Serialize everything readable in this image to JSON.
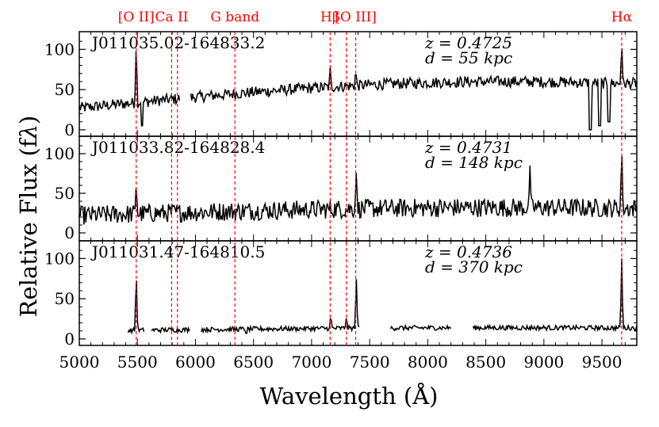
{
  "chart_data": {
    "type": "line",
    "xlabel": "Wavelength (Å)",
    "ylabel": "Relative Flux (f",
    "ylabel_sub": "λ",
    "ylabel_close": ")",
    "xlim": [
      5000,
      9800
    ],
    "x_ticks": [
      5000,
      5500,
      6000,
      6500,
      7000,
      7500,
      8000,
      8500,
      9000,
      9500
    ],
    "y_ticks": [
      0,
      50,
      100
    ],
    "line_color": "#000000",
    "marker_color": "#ff0000",
    "emission_lines": [
      {
        "label": "[O II]",
        "x": 5490
      },
      {
        "label": "Ca II",
        "x": 5795,
        "label2": null
      },
      {
        "label": null,
        "x": 5845
      },
      {
        "label": "G band",
        "x": 6340
      },
      {
        "label": "Hβ",
        "x": 7160
      },
      {
        "label": null,
        "x": 7300
      },
      {
        "label": "[O III]",
        "x": 7380
      },
      {
        "label": "Hα",
        "x": 9670
      }
    ],
    "panels": [
      {
        "name": "J011035.02-164833.2",
        "z_label": "z = 0.4725",
        "d_label": "d = 55 kpc",
        "ylim": [
          -8,
          122
        ],
        "baseline_start": 27,
        "baseline_peak": 60,
        "noise": 7,
        "gaps": [
          [
            5870,
            5960
          ]
        ],
        "peaks": [
          [
            5490,
            110
          ],
          [
            7160,
            78
          ],
          [
            7380,
            75
          ],
          [
            9670,
            110
          ]
        ],
        "dips": [
          [
            5540,
            5
          ],
          [
            9400,
            0
          ],
          [
            9480,
            5
          ],
          [
            9560,
            10
          ]
        ]
      },
      {
        "name": "J011033.82-164828.4",
        "z_label": "z = 0.4731",
        "d_label": "d = 148 kpc",
        "ylim": [
          -10,
          122
        ],
        "baseline_start": 22,
        "baseline_peak": 32,
        "noise": 12,
        "gaps": [],
        "peaks": [
          [
            5490,
            63
          ],
          [
            7385,
            80
          ],
          [
            8880,
            85
          ],
          [
            9670,
            110
          ]
        ],
        "dips": []
      },
      {
        "name": "J011031.47-164810.5",
        "z_label": "z = 0.4736",
        "d_label": "d = 370 kpc",
        "ylim": [
          -8,
          122
        ],
        "baseline_start": 10,
        "baseline_peak": 14,
        "noise": 3,
        "segments": [
          [
            5420,
            5560
          ],
          [
            5620,
            5950
          ],
          [
            6050,
            7410
          ],
          [
            7680,
            8200
          ],
          [
            8390,
            9800
          ]
        ],
        "peaks": [
          [
            5490,
            85
          ],
          [
            7165,
            30
          ],
          [
            7300,
            28
          ],
          [
            7385,
            80
          ],
          [
            9670,
            100
          ]
        ],
        "dips": [
          [
            6440,
            7
          ]
        ]
      }
    ]
  }
}
